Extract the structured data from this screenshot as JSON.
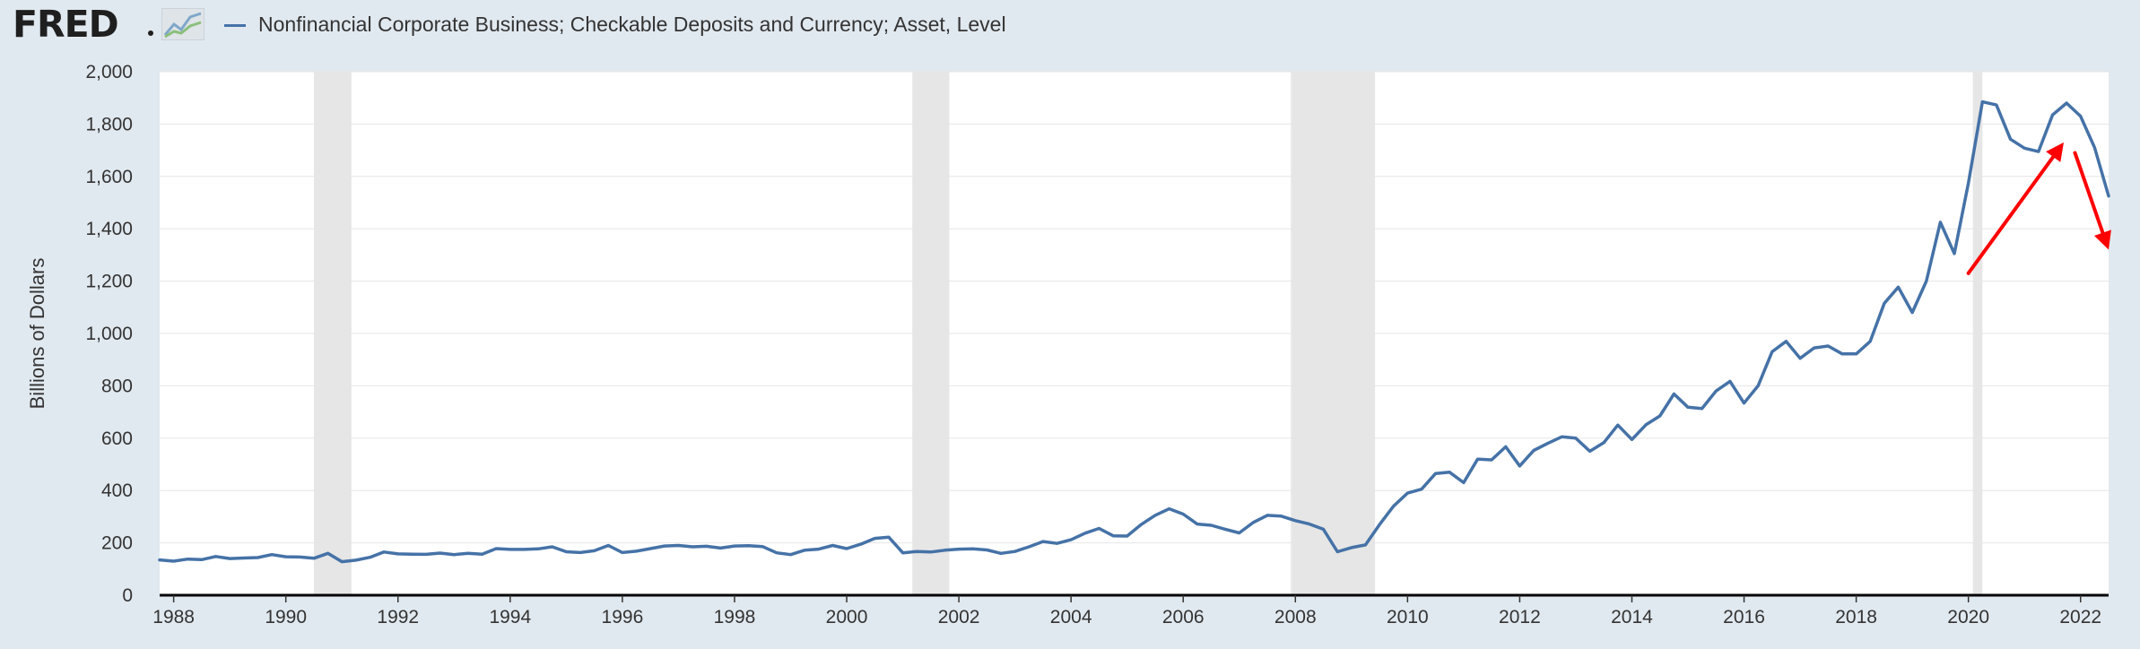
{
  "header": {
    "logo_text": "FRED",
    "series_title": "Nonfinancial Corporate Business; Checkable Deposits and Currency; Asset, Level"
  },
  "colors": {
    "line": "#4572a7",
    "recession": "#e6e6e6",
    "annotation": "#ff0000",
    "background": "#e1e9f0",
    "plot_background": "#ffffff"
  },
  "chart_data": {
    "type": "line",
    "title": "Nonfinancial Corporate Business; Checkable Deposits and Currency; Asset, Level",
    "xlabel": "",
    "ylabel": "Billions of Dollars",
    "xlim": [
      1987.75,
      2022.5
    ],
    "ylim": [
      0,
      2000
    ],
    "grid": true,
    "legend": "top-left",
    "x_ticks": [
      1988,
      1990,
      1992,
      1994,
      1996,
      1998,
      2000,
      2002,
      2004,
      2006,
      2008,
      2010,
      2012,
      2014,
      2016,
      2018,
      2020,
      2022
    ],
    "x_tick_labels": [
      "1988",
      "1990",
      "1992",
      "1994",
      "1996",
      "1998",
      "2000",
      "2002",
      "2004",
      "2006",
      "2008",
      "2010",
      "2012",
      "2014",
      "2016",
      "2018",
      "2020",
      "2022"
    ],
    "y_ticks": [
      0,
      200,
      400,
      600,
      800,
      1000,
      1200,
      1400,
      1600,
      1800,
      2000
    ],
    "y_tick_labels": [
      "0",
      "200",
      "400",
      "600",
      "800",
      "1,000",
      "1,200",
      "1,400",
      "1,600",
      "1,800",
      "2,000"
    ],
    "recessions": [
      [
        1990.5,
        1991.17
      ],
      [
        2001.17,
        2001.83
      ],
      [
        2007.92,
        2009.42
      ],
      [
        2020.08,
        2020.25
      ]
    ],
    "annotations": [
      {
        "type": "arrow",
        "from": [
          2020.0,
          1230
        ],
        "to": [
          2021.7,
          1730
        ]
      },
      {
        "type": "arrow",
        "from": [
          2021.9,
          1690
        ],
        "to": [
          2022.5,
          1320
        ]
      }
    ],
    "series": [
      {
        "x": [
          1987.75,
          1988.0,
          1988.25,
          1988.5,
          1988.75,
          1989.0,
          1989.25,
          1989.5,
          1989.75,
          1990.0,
          1990.25,
          1990.5,
          1990.75,
          1991.0,
          1991.25,
          1991.5,
          1991.75,
          1992.0,
          1992.25,
          1992.5,
          1992.75,
          1993.0,
          1993.25,
          1993.5,
          1993.75,
          1994.0,
          1994.25,
          1994.5,
          1994.75,
          1995.0,
          1995.25,
          1995.5,
          1995.75,
          1996.0,
          1996.25,
          1996.5,
          1996.75,
          1997.0,
          1997.25,
          1997.5,
          1997.75,
          1998.0,
          1998.25,
          1998.5,
          1998.75,
          1999.0,
          1999.25,
          1999.5,
          1999.75,
          2000.0,
          2000.25,
          2000.5,
          2000.75,
          2001.0,
          2001.25,
          2001.5,
          2001.75,
          2002.0,
          2002.25,
          2002.5,
          2002.75,
          2003.0,
          2003.25,
          2003.5,
          2003.75,
          2004.0,
          2004.25,
          2004.5,
          2004.75,
          2005.0,
          2005.25,
          2005.5,
          2005.75,
          2006.0,
          2006.25,
          2006.5,
          2006.75,
          2007.0,
          2007.25,
          2007.5,
          2007.75,
          2008.0,
          2008.25,
          2008.5,
          2008.75,
          2009.0,
          2009.25,
          2009.5,
          2009.75,
          2010.0,
          2010.25,
          2010.5,
          2010.75,
          2011.0,
          2011.25,
          2011.5,
          2011.75,
          2012.0,
          2012.25,
          2012.5,
          2012.75,
          2013.0,
          2013.25,
          2013.5,
          2013.75,
          2014.0,
          2014.25,
          2014.5,
          2014.75,
          2015.0,
          2015.25,
          2015.5,
          2015.75,
          2016.0,
          2016.25,
          2016.5,
          2016.75,
          2017.0,
          2017.25,
          2017.5,
          2017.75,
          2018.0,
          2018.25,
          2018.5,
          2018.75,
          2019.0,
          2019.25,
          2019.5,
          2019.75,
          2020.0,
          2020.25,
          2020.5,
          2020.75,
          2021.0,
          2021.25,
          2021.5,
          2021.75,
          2022.0,
          2022.25,
          2022.5
        ],
        "values": [
          135,
          130,
          138,
          136,
          148,
          140,
          142,
          144,
          155,
          147,
          146,
          141,
          160,
          128,
          134,
          145,
          165,
          158,
          157,
          156,
          161,
          155,
          160,
          157,
          178,
          175,
          175,
          177,
          185,
          166,
          163,
          170,
          190,
          163,
          168,
          178,
          188,
          190,
          185,
          187,
          180,
          188,
          189,
          186,
          162,
          155,
          172,
          176,
          190,
          178,
          195,
          217,
          222,
          162,
          167,
          165,
          172,
          176,
          177,
          173,
          160,
          167,
          185,
          205,
          198,
          212,
          237,
          255,
          227,
          226,
          270,
          305,
          330,
          310,
          272,
          267,
          252,
          238,
          278,
          305,
          302,
          285,
          272,
          252,
          166,
          182,
          192,
          270,
          340,
          390,
          405,
          465,
          470,
          430,
          520,
          517,
          567,
          494,
          553,
          580,
          605,
          600,
          550,
          583,
          650,
          595,
          651,
          685,
          769,
          718,
          713,
          780,
          817,
          734,
          800,
          930,
          970,
          905,
          945,
          952,
          922,
          922,
          970,
          1115,
          1177,
          1080,
          1200,
          1425,
          1305,
          1575,
          1885,
          1873,
          1742,
          1708,
          1695,
          1835,
          1880,
          1830,
          1710,
          1525
        ]
      }
    ]
  }
}
